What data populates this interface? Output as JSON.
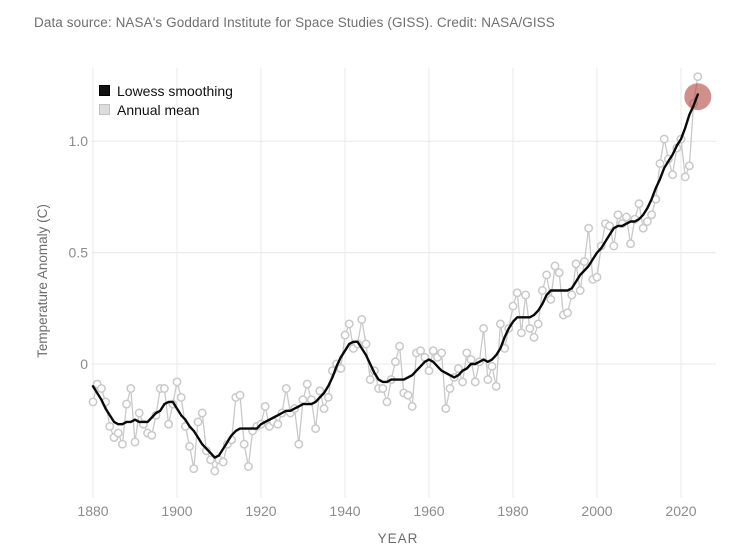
{
  "header": {
    "credit": "Data source: NASA's Goddard Institute for Space Studies (GISS). Credit: NASA/GISS"
  },
  "colors": {
    "background": "#ffffff",
    "grid": "#e8e8e8",
    "tick_label": "#8c8c8c",
    "axis_title": "#6e6e6e",
    "credit_text": "#6f6f6f",
    "annual_series": "#c9c9c9",
    "annual_marker_fill": "#ffffff",
    "lowess_series": "#0a0a0a",
    "highlight": "rgba(176,62,56,0.58)"
  },
  "chart_data": {
    "type": "line",
    "xlabel": "YEAR",
    "ylabel": "Temperature Anomaly (C)",
    "xlim": [
      1878,
      2026
    ],
    "ylim": [
      -0.57,
      1.32
    ],
    "x_ticks": [
      1880,
      1900,
      1920,
      1940,
      1960,
      1980,
      2000,
      2020
    ],
    "y_ticks": [
      {
        "value": 0,
        "label": "0"
      },
      {
        "value": 0.5,
        "label": "0.5"
      },
      {
        "value": 1,
        "label": "1.0"
      }
    ],
    "grid": true,
    "legend": {
      "position": "top-left",
      "entries": [
        {
          "label": "Lowess smoothing",
          "color": "#111111",
          "border": "#000000"
        },
        {
          "label": "Annual mean",
          "color": "#dcdcdc",
          "border": "#c2c2c2"
        }
      ]
    },
    "x": [
      1880,
      1881,
      1882,
      1883,
      1884,
      1885,
      1886,
      1887,
      1888,
      1889,
      1890,
      1891,
      1892,
      1893,
      1894,
      1895,
      1896,
      1897,
      1898,
      1899,
      1900,
      1901,
      1902,
      1903,
      1904,
      1905,
      1906,
      1907,
      1908,
      1909,
      1910,
      1911,
      1912,
      1913,
      1914,
      1915,
      1916,
      1917,
      1918,
      1919,
      1920,
      1921,
      1922,
      1923,
      1924,
      1925,
      1926,
      1927,
      1928,
      1929,
      1930,
      1931,
      1932,
      1933,
      1934,
      1935,
      1936,
      1937,
      1938,
      1939,
      1940,
      1941,
      1942,
      1943,
      1944,
      1945,
      1946,
      1947,
      1948,
      1949,
      1950,
      1951,
      1952,
      1953,
      1954,
      1955,
      1956,
      1957,
      1958,
      1959,
      1960,
      1961,
      1962,
      1963,
      1964,
      1965,
      1966,
      1967,
      1968,
      1969,
      1970,
      1971,
      1972,
      1973,
      1974,
      1975,
      1976,
      1977,
      1978,
      1979,
      1980,
      1981,
      1982,
      1983,
      1984,
      1985,
      1986,
      1987,
      1988,
      1989,
      1990,
      1991,
      1992,
      1993,
      1994,
      1995,
      1996,
      1997,
      1998,
      1999,
      2000,
      2001,
      2002,
      2003,
      2004,
      2005,
      2006,
      2007,
      2008,
      2009,
      2010,
      2011,
      2012,
      2013,
      2014,
      2015,
      2016,
      2017,
      2018,
      2019,
      2020,
      2021,
      2022,
      2023,
      2024
    ],
    "series": [
      {
        "name": "Annual mean",
        "style": "line-with-open-circle-markers",
        "values": [
          -0.17,
          -0.09,
          -0.11,
          -0.17,
          -0.28,
          -0.33,
          -0.31,
          -0.36,
          -0.18,
          -0.11,
          -0.35,
          -0.22,
          -0.27,
          -0.31,
          -0.32,
          -0.23,
          -0.11,
          -0.11,
          -0.27,
          -0.18,
          -0.08,
          -0.15,
          -0.28,
          -0.37,
          -0.47,
          -0.26,
          -0.22,
          -0.39,
          -0.43,
          -0.48,
          -0.43,
          -0.44,
          -0.36,
          -0.34,
          -0.15,
          -0.14,
          -0.36,
          -0.46,
          -0.3,
          -0.28,
          -0.27,
          -0.19,
          -0.28,
          -0.26,
          -0.27,
          -0.22,
          -0.11,
          -0.22,
          -0.2,
          -0.36,
          -0.16,
          -0.09,
          -0.16,
          -0.29,
          -0.12,
          -0.2,
          -0.15,
          -0.03,
          0.0,
          -0.02,
          0.13,
          0.18,
          0.07,
          0.09,
          0.2,
          0.09,
          -0.07,
          -0.03,
          -0.11,
          -0.11,
          -0.17,
          -0.07,
          0.01,
          0.08,
          -0.13,
          -0.14,
          -0.19,
          0.05,
          0.06,
          0.03,
          -0.03,
          0.06,
          0.03,
          0.05,
          -0.2,
          -0.11,
          -0.06,
          -0.02,
          -0.08,
          0.05,
          0.02,
          -0.08,
          0.01,
          0.16,
          -0.07,
          -0.01,
          -0.1,
          0.18,
          0.07,
          0.16,
          0.26,
          0.32,
          0.14,
          0.31,
          0.16,
          0.12,
          0.18,
          0.33,
          0.4,
          0.29,
          0.44,
          0.41,
          0.22,
          0.23,
          0.31,
          0.45,
          0.33,
          0.46,
          0.61,
          0.38,
          0.39,
          0.53,
          0.63,
          0.62,
          0.53,
          0.67,
          0.63,
          0.66,
          0.54,
          0.65,
          0.72,
          0.61,
          0.64,
          0.67,
          0.74,
          0.9,
          1.01,
          0.92,
          0.85,
          0.97,
          1.01,
          0.84,
          0.89,
          1.17,
          1.29
        ]
      },
      {
        "name": "Lowess smoothing",
        "style": "line",
        "values": [
          -0.1,
          -0.13,
          -0.16,
          -0.2,
          -0.23,
          -0.26,
          -0.27,
          -0.27,
          -0.26,
          -0.26,
          -0.25,
          -0.26,
          -0.26,
          -0.26,
          -0.24,
          -0.22,
          -0.21,
          -0.18,
          -0.17,
          -0.17,
          -0.2,
          -0.23,
          -0.25,
          -0.28,
          -0.3,
          -0.33,
          -0.36,
          -0.38,
          -0.4,
          -0.42,
          -0.41,
          -0.38,
          -0.35,
          -0.32,
          -0.3,
          -0.29,
          -0.29,
          -0.29,
          -0.29,
          -0.29,
          -0.27,
          -0.26,
          -0.25,
          -0.24,
          -0.23,
          -0.22,
          -0.21,
          -0.21,
          -0.2,
          -0.19,
          -0.18,
          -0.18,
          -0.18,
          -0.17,
          -0.15,
          -0.13,
          -0.1,
          -0.06,
          -0.01,
          0.03,
          0.06,
          0.09,
          0.1,
          0.1,
          0.07,
          0.04,
          0.0,
          -0.04,
          -0.07,
          -0.08,
          -0.08,
          -0.07,
          -0.07,
          -0.07,
          -0.07,
          -0.06,
          -0.05,
          -0.03,
          -0.01,
          0.01,
          0.02,
          0.01,
          -0.01,
          -0.03,
          -0.04,
          -0.05,
          -0.06,
          -0.05,
          -0.03,
          -0.02,
          0.0,
          0.0,
          0.01,
          0.02,
          0.01,
          0.02,
          0.04,
          0.07,
          0.12,
          0.16,
          0.19,
          0.21,
          0.21,
          0.21,
          0.21,
          0.22,
          0.24,
          0.27,
          0.31,
          0.33,
          0.33,
          0.33,
          0.33,
          0.33,
          0.34,
          0.37,
          0.4,
          0.42,
          0.44,
          0.47,
          0.5,
          0.52,
          0.55,
          0.58,
          0.61,
          0.62,
          0.62,
          0.63,
          0.64,
          0.64,
          0.65,
          0.67,
          0.7,
          0.74,
          0.79,
          0.83,
          0.88,
          0.91,
          0.94,
          0.98,
          1.01,
          1.06,
          1.12,
          1.16,
          1.21
        ]
      }
    ],
    "highlight": {
      "year": 2024,
      "value": 1.2,
      "radius_px": 13.5
    }
  }
}
